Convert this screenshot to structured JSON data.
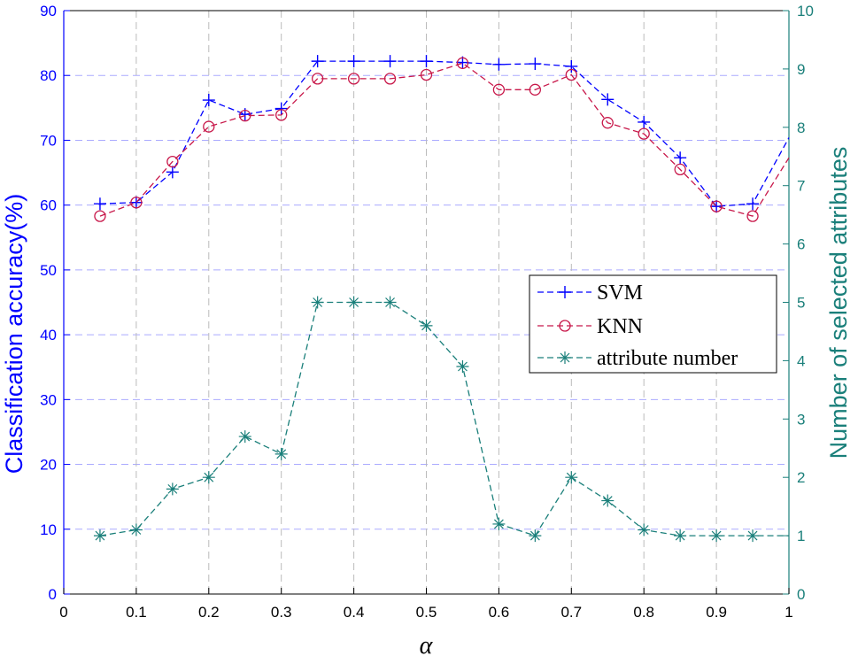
{
  "chart_data": {
    "type": "line",
    "xlabel": "α",
    "ylabel_left": "Classification accuracy(%)",
    "ylabel_right": "Number of selected attributes",
    "xlim": [
      0,
      1
    ],
    "ylim_left": [
      0,
      90
    ],
    "ylim_right": [
      0,
      10
    ],
    "xticks": [
      "0",
      "0.1",
      "0.2",
      "0.3",
      "0.4",
      "0.5",
      "0.6",
      "0.7",
      "0.8",
      "0.9",
      "1"
    ],
    "yticks_left": [
      "0",
      "10",
      "20",
      "30",
      "40",
      "50",
      "60",
      "70",
      "80",
      "90"
    ],
    "yticks_right": [
      "0",
      "1",
      "2",
      "3",
      "4",
      "5",
      "6",
      "7",
      "8",
      "9",
      "10"
    ],
    "grid": true,
    "legend_position": "right-middle",
    "colors": {
      "svm": "#0000ff",
      "knn": "#c8184a",
      "attr": "#1a7f7a",
      "grid_horizontal": "#aaaaff",
      "grid_vertical": "#bbbbbb"
    },
    "series": [
      {
        "name": "SVM",
        "axis": "left",
        "marker": "plus",
        "x": [
          0.05,
          0.1,
          0.15,
          0.2,
          0.25,
          0.3,
          0.35,
          0.4,
          0.45,
          0.5,
          0.55,
          0.6,
          0.65,
          0.7,
          0.75,
          0.8,
          0.85,
          0.9,
          0.95,
          1.0
        ],
        "y": [
          60.2,
          60.4,
          65.1,
          76.2,
          74.0,
          74.9,
          82.2,
          82.2,
          82.2,
          82.2,
          82.0,
          81.7,
          81.8,
          81.4,
          76.3,
          72.8,
          67.3,
          59.8,
          60.2,
          70.4
        ]
      },
      {
        "name": "KNN",
        "axis": "left",
        "marker": "circle",
        "x": [
          0.05,
          0.1,
          0.15,
          0.2,
          0.25,
          0.3,
          0.35,
          0.4,
          0.45,
          0.5,
          0.55,
          0.6,
          0.65,
          0.7,
          0.75,
          0.8,
          0.85,
          0.9,
          0.95,
          1.0
        ],
        "y": [
          58.3,
          60.4,
          66.7,
          72.1,
          73.8,
          73.9,
          79.5,
          79.5,
          79.5,
          80.1,
          81.9,
          77.8,
          77.8,
          80.1,
          72.7,
          71.0,
          65.5,
          59.8,
          58.3,
          67.3
        ]
      },
      {
        "name": "attribute number",
        "axis": "right",
        "marker": "asterisk",
        "x": [
          0.05,
          0.1,
          0.15,
          0.2,
          0.25,
          0.3,
          0.35,
          0.4,
          0.45,
          0.5,
          0.55,
          0.6,
          0.65,
          0.7,
          0.75,
          0.8,
          0.85,
          0.9,
          0.95,
          1.0
        ],
        "y": [
          1.0,
          1.1,
          1.8,
          2.0,
          2.7,
          2.4,
          5.0,
          5.0,
          5.0,
          4.6,
          3.9,
          1.2,
          1.0,
          2.0,
          1.6,
          1.1,
          1.0,
          1.0,
          1.0,
          1.0
        ]
      }
    ]
  }
}
